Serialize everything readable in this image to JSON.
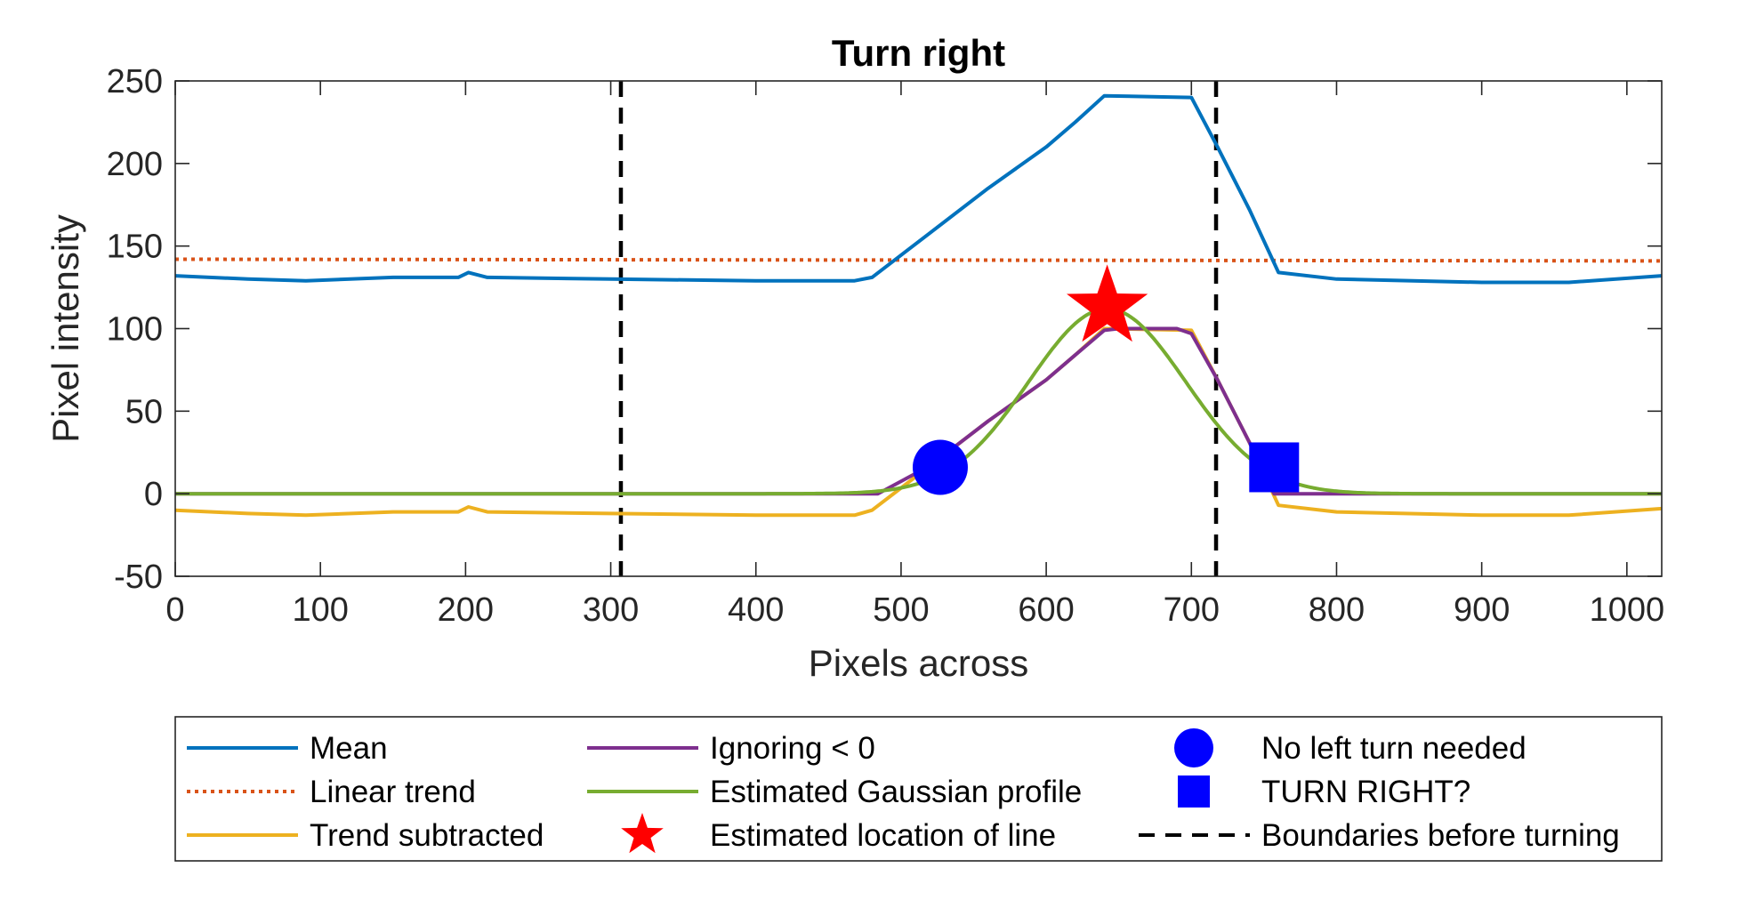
{
  "chart_data": {
    "type": "line",
    "title": "Turn right",
    "xlabel": "Pixels across",
    "ylabel": "Pixel intensity",
    "xlim": [
      0,
      1024
    ],
    "ylim": [
      -50,
      250
    ],
    "xticks": [
      0,
      100,
      200,
      300,
      400,
      500,
      600,
      700,
      800,
      900,
      1000
    ],
    "yticks": [
      -50,
      0,
      50,
      100,
      150,
      200,
      250
    ],
    "xtick_labels": [
      "0",
      "100",
      "200",
      "300",
      "400",
      "500",
      "600",
      "700",
      "800",
      "900",
      "1000"
    ],
    "ytick_labels": [
      "-50",
      "0",
      "50",
      "100",
      "150",
      "200",
      "250"
    ],
    "grid": false,
    "legend_position": "bottom",
    "series": [
      {
        "name": "Mean",
        "color": "#0072BD",
        "style": "solid",
        "x": [
          0,
          50,
          90,
          150,
          195,
          202,
          215,
          300,
          400,
          468,
          480,
          520,
          560,
          600,
          620,
          640,
          700,
          718,
          740,
          760,
          800,
          900,
          960,
          1024
        ],
        "y": [
          132,
          130,
          129,
          131,
          131,
          134,
          131,
          130,
          129,
          129,
          131,
          158,
          185,
          210,
          225,
          241,
          240,
          210,
          172,
          134,
          130,
          128,
          128,
          132
        ]
      },
      {
        "name": "Linear trend",
        "color": "#D95319",
        "style": "dotted",
        "x": [
          0,
          1024
        ],
        "y": [
          142,
          141
        ]
      },
      {
        "name": "Trend subtracted",
        "color": "#EDB120",
        "style": "solid",
        "x": [
          0,
          50,
          90,
          150,
          195,
          202,
          215,
          300,
          400,
          468,
          480,
          520,
          560,
          600,
          620,
          640,
          700,
          718,
          740,
          760,
          800,
          900,
          960,
          1024
        ],
        "y": [
          -10,
          -12,
          -13,
          -11,
          -11,
          -8,
          -11,
          -12,
          -13,
          -13,
          -10,
          17,
          44,
          69,
          84,
          100,
          99,
          69,
          31,
          -7,
          -11,
          -13,
          -13,
          -9
        ]
      },
      {
        "name": "Ignoring < 0",
        "color": "#7E2F8E",
        "style": "solid",
        "x": [
          0,
          484,
          520,
          560,
          600,
          620,
          640,
          650,
          690,
          700,
          718,
          740,
          757,
          1024
        ],
        "y": [
          0,
          0,
          17,
          44,
          69,
          84,
          99,
          100,
          100,
          97,
          69,
          31,
          0,
          0
        ]
      },
      {
        "name": "Estimated Gaussian profile",
        "color": "#77AC30",
        "style": "gaussian",
        "mu": 642,
        "sigma": 54,
        "amplitude": 112,
        "x": [
          0,
          1024
        ],
        "y": [
          0,
          0
        ]
      }
    ],
    "markers": [
      {
        "name": "Estimated location of line",
        "shape": "star",
        "color": "#FF0000",
        "x": 642,
        "y": 113
      },
      {
        "name": "No left turn needed",
        "shape": "circle",
        "color": "#0000FF",
        "x": 527,
        "y": 16
      },
      {
        "name": "TURN RIGHT?",
        "shape": "square",
        "color": "#0000FF",
        "x": 757,
        "y": 16
      }
    ],
    "vlines": [
      {
        "name": "Boundaries before turning",
        "color": "#000000",
        "style": "dashed",
        "x": 307
      },
      {
        "name": "Boundaries before turning",
        "color": "#000000",
        "style": "dashed",
        "x": 717
      }
    ],
    "legend": [
      {
        "label": "Mean",
        "type": "line",
        "color": "#0072BD",
        "style": "solid"
      },
      {
        "label": "Linear trend",
        "type": "line",
        "color": "#D95319",
        "style": "dotted"
      },
      {
        "label": "Trend subtracted",
        "type": "line",
        "color": "#EDB120",
        "style": "solid"
      },
      {
        "label": "Ignoring < 0",
        "type": "line",
        "color": "#7E2F8E",
        "style": "solid"
      },
      {
        "label": "Estimated Gaussian profile",
        "type": "line",
        "color": "#77AC30",
        "style": "solid"
      },
      {
        "label": "Estimated location of line",
        "type": "star",
        "color": "#FF0000"
      },
      {
        "label": "No left turn needed",
        "type": "circle",
        "color": "#0000FF"
      },
      {
        "label": "TURN RIGHT?",
        "type": "square",
        "color": "#0000FF"
      },
      {
        "label": "Boundaries before turning",
        "type": "line",
        "color": "#000000",
        "style": "dashed"
      }
    ]
  }
}
